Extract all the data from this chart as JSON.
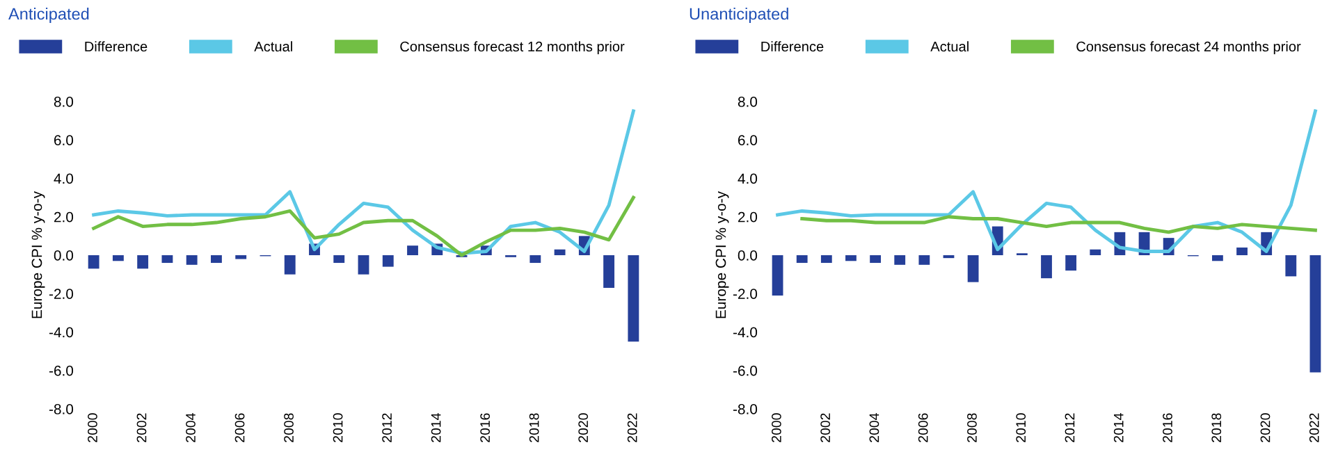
{
  "chart_data": [
    {
      "type": "bar",
      "title": "Anticipated",
      "ylabel": "Europe CPI % y-o-y",
      "categories": [
        "2000",
        null,
        "2002",
        null,
        "2004",
        null,
        "2006",
        null,
        "2008",
        null,
        "2010",
        null,
        "2012",
        null,
        "2014",
        null,
        "2016",
        null,
        "2018",
        null,
        "2020",
        null,
        "2022"
      ],
      "series": [
        {
          "name": "Difference",
          "color": "#253f99",
          "values": [
            -0.7,
            -0.3,
            -0.7,
            -0.4,
            -0.5,
            -0.4,
            -0.2,
            -0.05,
            -1.0,
            0.6,
            -0.4,
            -1.0,
            -0.6,
            0.5,
            0.6,
            -0.1,
            0.5,
            -0.1,
            -0.4,
            0.3,
            1.0,
            -1.7,
            -4.5
          ]
        },
        {
          "name": "Actual",
          "type": "line",
          "color": "#5bc8e6",
          "values": [
            2.1,
            2.3,
            2.2,
            2.05,
            2.1,
            2.1,
            2.1,
            2.1,
            3.3,
            0.3,
            1.6,
            2.7,
            2.5,
            1.3,
            0.4,
            0.1,
            0.2,
            1.5,
            1.7,
            1.2,
            0.2,
            2.6,
            7.5
          ]
        },
        {
          "name": "Consensus forecast 12 months prior",
          "type": "line",
          "color": "#72bf44",
          "values": [
            1.4,
            2.0,
            1.5,
            1.6,
            1.6,
            1.7,
            1.9,
            2.0,
            2.3,
            0.9,
            1.1,
            1.7,
            1.8,
            1.8,
            1.0,
            0.0,
            0.7,
            1.3,
            1.3,
            1.4,
            1.2,
            0.8,
            3.0
          ]
        }
      ],
      "ylim": [
        -8,
        8
      ],
      "yticks": [
        {
          "value": -8,
          "label": "-8.0"
        },
        {
          "value": -6,
          "label": "-6.0"
        },
        {
          "value": -4,
          "label": "-4.0"
        },
        {
          "value": -2,
          "label": "-2.0"
        },
        {
          "value": 0,
          "label": "0.0"
        },
        {
          "value": 2,
          "label": "2.0"
        },
        {
          "value": 4,
          "label": "4.0"
        },
        {
          "value": 6,
          "label": "6.0"
        },
        {
          "value": 8,
          "label": "8.0"
        }
      ],
      "legend": "top",
      "grid": false,
      "marker": "none",
      "line_style": "solid"
    },
    {
      "type": "bar",
      "title": "Unanticipated",
      "ylabel": "Europe CPI % y-o-y",
      "categories": [
        "2000",
        null,
        "2002",
        null,
        "2004",
        null,
        "2006",
        null,
        "2008",
        null,
        "2010",
        null,
        "2012",
        null,
        "2014",
        null,
        "2016",
        null,
        "2018",
        null,
        "2020",
        null,
        "2022"
      ],
      "series": [
        {
          "name": "Difference",
          "color": "#253f99",
          "values": [
            -2.1,
            -0.4,
            -0.4,
            -0.3,
            -0.4,
            -0.5,
            -0.5,
            -0.15,
            -1.4,
            1.5,
            0.1,
            -1.2,
            -0.8,
            0.3,
            1.2,
            1.2,
            0.9,
            -0.05,
            -0.3,
            0.4,
            1.2,
            -1.1,
            -6.1
          ]
        },
        {
          "name": "Actual",
          "type": "line",
          "color": "#5bc8e6",
          "values": [
            2.1,
            2.3,
            2.2,
            2.05,
            2.1,
            2.1,
            2.1,
            2.1,
            3.3,
            0.3,
            1.6,
            2.7,
            2.5,
            1.3,
            0.4,
            0.2,
            0.2,
            1.5,
            1.7,
            1.2,
            0.2,
            2.6,
            7.5
          ]
        },
        {
          "name": "Consensus forecast 24 months prior",
          "type": "line",
          "color": "#72bf44",
          "values": [
            null,
            1.9,
            1.8,
            1.8,
            1.7,
            1.7,
            1.7,
            2.0,
            1.9,
            1.9,
            1.7,
            1.5,
            1.7,
            1.7,
            1.7,
            1.4,
            1.2,
            1.5,
            1.4,
            1.6,
            1.5,
            1.4,
            1.3
          ]
        }
      ],
      "ylim": [
        -8,
        8
      ],
      "yticks": [
        {
          "value": -8,
          "label": "-8.0"
        },
        {
          "value": -6,
          "label": "-6.0"
        },
        {
          "value": -4,
          "label": "-4.0"
        },
        {
          "value": -2,
          "label": "-2.0"
        },
        {
          "value": 0,
          "label": "0.0"
        },
        {
          "value": 2,
          "label": "2.0"
        },
        {
          "value": 4,
          "label": "4.0"
        },
        {
          "value": 6,
          "label": "6.0"
        },
        {
          "value": 8,
          "label": "8.0"
        }
      ],
      "legend": "top",
      "grid": false,
      "marker": "none",
      "line_style": "solid"
    }
  ]
}
